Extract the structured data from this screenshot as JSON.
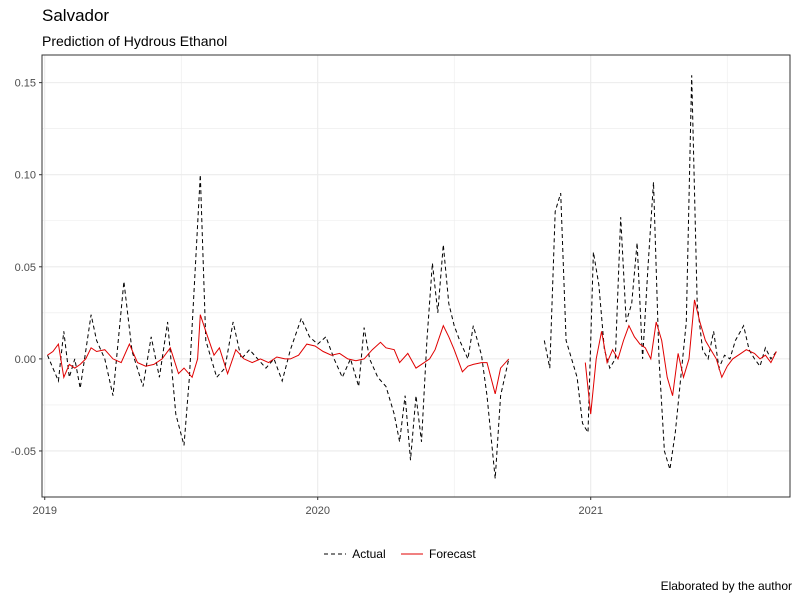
{
  "title": "Salvador",
  "subtitle": "Prediction of Hydrous Ethanol",
  "caption": "Elaborated by the author",
  "chart_data": {
    "type": "line",
    "title": "Salvador",
    "subtitle": "Prediction of Hydrous Ethanol",
    "xlabel": "",
    "ylabel": "",
    "xlim": [
      2018.99,
      2021.73
    ],
    "ylim": [
      -0.075,
      0.165
    ],
    "x_ticks": [
      2019,
      2020,
      2021
    ],
    "x_tick_labels": [
      "2019",
      "2020",
      "2021"
    ],
    "y_ticks": [
      -0.05,
      0.0,
      0.05,
      0.1,
      0.15
    ],
    "y_tick_labels": [
      "-0.05",
      "0.00",
      "0.05",
      "0.10",
      "0.15"
    ],
    "grid": true,
    "legend_position": "bottom",
    "colors": {
      "actual": "#000000",
      "forecast": "#e00000",
      "grid": "#ebebeb"
    },
    "series": [
      {
        "name": "Actual",
        "style": "dashed",
        "color": "#000000",
        "points": [
          [
            2019.01,
            0.002
          ],
          [
            2019.03,
            -0.005
          ],
          [
            2019.05,
            -0.012
          ],
          [
            2019.07,
            0.015
          ],
          [
            2019.09,
            -0.01
          ],
          [
            2019.11,
            0.0
          ],
          [
            2019.13,
            -0.016
          ],
          [
            2019.17,
            0.024
          ],
          [
            2019.19,
            0.01
          ],
          [
            2019.22,
            0.0
          ],
          [
            2019.25,
            -0.02
          ],
          [
            2019.29,
            0.042
          ],
          [
            2019.32,
            0.004
          ],
          [
            2019.36,
            -0.015
          ],
          [
            2019.39,
            0.012
          ],
          [
            2019.42,
            -0.01
          ],
          [
            2019.45,
            0.02
          ],
          [
            2019.48,
            -0.03
          ],
          [
            2019.51,
            -0.047
          ],
          [
            2019.53,
            -0.01
          ],
          [
            2019.57,
            0.1
          ],
          [
            2019.59,
            0.01
          ],
          [
            2019.63,
            -0.01
          ],
          [
            2019.66,
            -0.005
          ],
          [
            2019.69,
            0.02
          ],
          [
            2019.72,
            0.0
          ],
          [
            2019.75,
            0.005
          ],
          [
            2019.78,
            0.0
          ],
          [
            2019.81,
            -0.005
          ],
          [
            2019.84,
            0.0
          ],
          [
            2019.87,
            -0.012
          ],
          [
            2019.9,
            0.005
          ],
          [
            2019.94,
            0.022
          ],
          [
            2019.97,
            0.012
          ],
          [
            2020.0,
            0.008
          ],
          [
            2020.03,
            0.012
          ],
          [
            2020.06,
            0.0
          ],
          [
            2020.09,
            -0.01
          ],
          [
            2020.12,
            0.0
          ],
          [
            2020.15,
            -0.015
          ],
          [
            2020.17,
            0.017
          ],
          [
            2020.19,
            0.0
          ],
          [
            2020.22,
            -0.01
          ],
          [
            2020.25,
            -0.015
          ],
          [
            2020.28,
            -0.03
          ],
          [
            2020.3,
            -0.045
          ],
          [
            2020.32,
            -0.02
          ],
          [
            2020.34,
            -0.055
          ],
          [
            2020.36,
            -0.02
          ],
          [
            2020.38,
            -0.045
          ],
          [
            2020.4,
            0.01
          ],
          [
            2020.42,
            0.052
          ],
          [
            2020.44,
            0.025
          ],
          [
            2020.46,
            0.062
          ],
          [
            2020.48,
            0.03
          ],
          [
            2020.5,
            0.018
          ],
          [
            2020.52,
            0.01
          ],
          [
            2020.55,
            0.0
          ],
          [
            2020.57,
            0.018
          ],
          [
            2020.6,
            0.002
          ],
          [
            2020.62,
            -0.02
          ],
          [
            2020.65,
            -0.065
          ],
          [
            2020.67,
            -0.02
          ],
          [
            2020.7,
            0.0
          ]
        ]
      },
      {
        "name": "Actual",
        "style": "dashed",
        "color": "#000000",
        "points": [
          [
            2020.83,
            0.01
          ],
          [
            2020.85,
            -0.005
          ],
          [
            2020.87,
            0.08
          ],
          [
            2020.89,
            0.09
          ],
          [
            2020.91,
            0.01
          ],
          [
            2020.93,
            0.0
          ],
          [
            2020.95,
            -0.01
          ],
          [
            2020.97,
            -0.035
          ],
          [
            2020.99,
            -0.04
          ],
          [
            2021.01,
            0.058
          ],
          [
            2021.03,
            0.04
          ],
          [
            2021.05,
            0.005
          ],
          [
            2021.07,
            -0.005
          ],
          [
            2021.09,
            0.0
          ],
          [
            2021.11,
            0.077
          ],
          [
            2021.13,
            0.02
          ],
          [
            2021.15,
            0.03
          ],
          [
            2021.17,
            0.063
          ],
          [
            2021.19,
            0.0
          ],
          [
            2021.21,
            0.05
          ],
          [
            2021.23,
            0.096
          ],
          [
            2021.25,
            0.0
          ],
          [
            2021.27,
            -0.05
          ],
          [
            2021.29,
            -0.06
          ],
          [
            2021.31,
            -0.04
          ],
          [
            2021.33,
            -0.01
          ],
          [
            2021.35,
            0.02
          ],
          [
            2021.37,
            0.154
          ],
          [
            2021.39,
            0.03
          ],
          [
            2021.41,
            0.005
          ],
          [
            2021.43,
            0.0
          ],
          [
            2021.45,
            0.015
          ],
          [
            2021.47,
            -0.005
          ],
          [
            2021.49,
            0.002
          ],
          [
            2021.51,
            0.0
          ],
          [
            2021.53,
            0.01
          ],
          [
            2021.56,
            0.018
          ],
          [
            2021.58,
            0.005
          ],
          [
            2021.6,
            0.0
          ],
          [
            2021.62,
            -0.004
          ],
          [
            2021.64,
            0.006
          ],
          [
            2021.66,
            0.0
          ],
          [
            2021.68,
            0.004
          ]
        ]
      },
      {
        "name": "Forecast",
        "style": "solid",
        "color": "#e00000",
        "points": [
          [
            2019.01,
            0.002
          ],
          [
            2019.03,
            0.004
          ],
          [
            2019.05,
            0.008
          ],
          [
            2019.07,
            -0.01
          ],
          [
            2019.09,
            -0.003
          ],
          [
            2019.11,
            -0.005
          ],
          [
            2019.13,
            -0.003
          ],
          [
            2019.15,
            0.0
          ],
          [
            2019.17,
            0.006
          ],
          [
            2019.19,
            0.004
          ],
          [
            2019.22,
            0.005
          ],
          [
            2019.25,
            0.0
          ],
          [
            2019.28,
            -0.002
          ],
          [
            2019.31,
            0.008
          ],
          [
            2019.34,
            -0.002
          ],
          [
            2019.37,
            -0.004
          ],
          [
            2019.4,
            -0.003
          ],
          [
            2019.43,
            0.0
          ],
          [
            2019.46,
            0.006
          ],
          [
            2019.49,
            -0.008
          ],
          [
            2019.51,
            -0.005
          ],
          [
            2019.54,
            -0.01
          ],
          [
            2019.56,
            0.0
          ],
          [
            2019.57,
            0.024
          ],
          [
            2019.59,
            0.015
          ],
          [
            2019.62,
            0.002
          ],
          [
            2019.64,
            0.006
          ],
          [
            2019.67,
            -0.008
          ],
          [
            2019.7,
            0.005
          ],
          [
            2019.73,
            0.0
          ],
          [
            2019.76,
            -0.002
          ],
          [
            2019.79,
            0.0
          ],
          [
            2019.82,
            -0.002
          ],
          [
            2019.85,
            0.001
          ],
          [
            2019.88,
            0.0
          ],
          [
            2019.9,
            0.0
          ],
          [
            2019.93,
            0.002
          ],
          [
            2019.96,
            0.008
          ],
          [
            2019.99,
            0.007
          ],
          [
            2020.02,
            0.004
          ],
          [
            2020.05,
            0.002
          ],
          [
            2020.08,
            0.003
          ],
          [
            2020.11,
            0.0
          ],
          [
            2020.14,
            -0.001
          ],
          [
            2020.17,
            0.0
          ],
          [
            2020.2,
            0.005
          ],
          [
            2020.23,
            0.009
          ],
          [
            2020.25,
            0.006
          ],
          [
            2020.28,
            0.005
          ],
          [
            2020.3,
            -0.002
          ],
          [
            2020.33,
            0.003
          ],
          [
            2020.36,
            -0.005
          ],
          [
            2020.39,
            -0.002
          ],
          [
            2020.41,
            0.0
          ],
          [
            2020.43,
            0.005
          ],
          [
            2020.46,
            0.018
          ],
          [
            2020.48,
            0.012
          ],
          [
            2020.5,
            0.005
          ],
          [
            2020.53,
            -0.007
          ],
          [
            2020.55,
            -0.004
          ],
          [
            2020.57,
            -0.003
          ],
          [
            2020.6,
            -0.002
          ],
          [
            2020.62,
            -0.002
          ],
          [
            2020.65,
            -0.019
          ],
          [
            2020.67,
            -0.005
          ],
          [
            2020.7,
            0.0
          ]
        ]
      },
      {
        "name": "Forecast",
        "style": "solid",
        "color": "#e00000",
        "points": [
          [
            2020.98,
            -0.002
          ],
          [
            2021.0,
            -0.03
          ],
          [
            2021.02,
            0.0
          ],
          [
            2021.04,
            0.015
          ],
          [
            2021.06,
            -0.002
          ],
          [
            2021.08,
            0.005
          ],
          [
            2021.1,
            0.0
          ],
          [
            2021.12,
            0.01
          ],
          [
            2021.14,
            0.018
          ],
          [
            2021.16,
            0.012
          ],
          [
            2021.18,
            0.008
          ],
          [
            2021.2,
            0.006
          ],
          [
            2021.22,
            0.0
          ],
          [
            2021.24,
            0.02
          ],
          [
            2021.26,
            0.01
          ],
          [
            2021.28,
            -0.01
          ],
          [
            2021.3,
            -0.02
          ],
          [
            2021.32,
            0.003
          ],
          [
            2021.34,
            -0.01
          ],
          [
            2021.36,
            0.0
          ],
          [
            2021.38,
            0.032
          ],
          [
            2021.4,
            0.02
          ],
          [
            2021.42,
            0.01
          ],
          [
            2021.44,
            0.005
          ],
          [
            2021.46,
            0.0
          ],
          [
            2021.48,
            -0.01
          ],
          [
            2021.5,
            -0.004
          ],
          [
            2021.52,
            0.0
          ],
          [
            2021.55,
            0.003
          ],
          [
            2021.57,
            0.005
          ],
          [
            2021.6,
            0.003
          ],
          [
            2021.62,
            0.0
          ],
          [
            2021.64,
            0.002
          ],
          [
            2021.66,
            -0.002
          ],
          [
            2021.68,
            0.004
          ]
        ]
      }
    ]
  }
}
